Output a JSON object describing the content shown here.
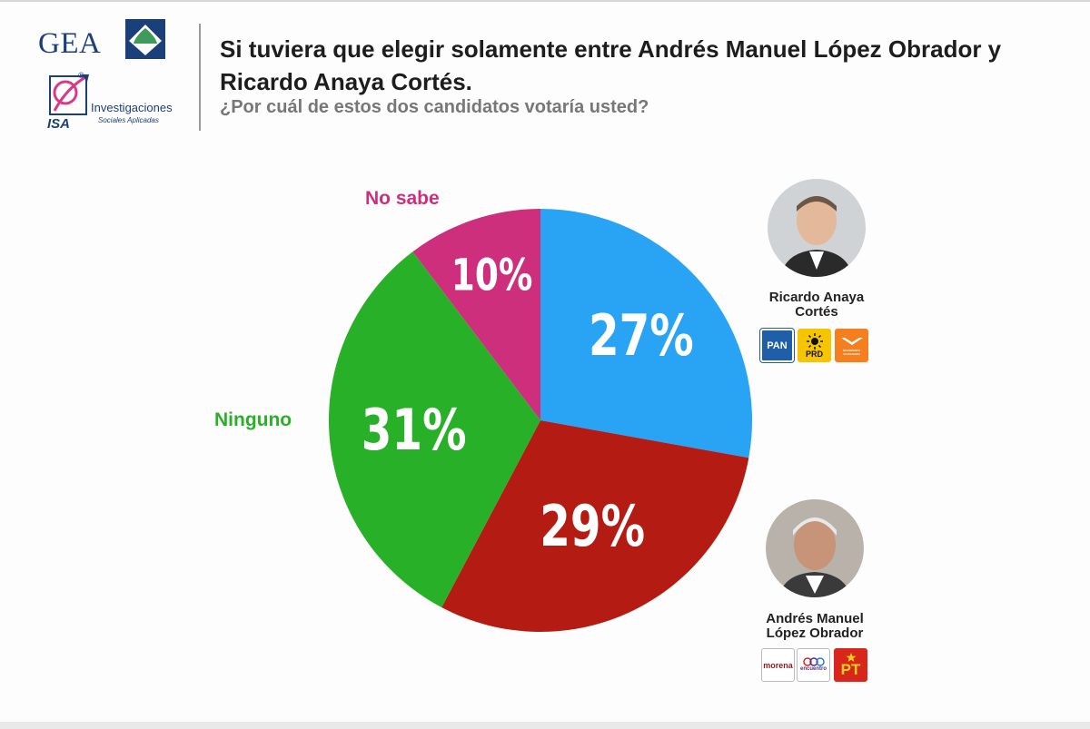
{
  "header": {
    "title": "Si tuviera que elegir solamente entre Andrés Manuel López Obrador y Ricardo Anaya Cortés.",
    "subtitle": "¿Por cuál de estos dos candidatos votaría usted?"
  },
  "logos": {
    "gea": "GEA",
    "isa_line1": "Investigaciones",
    "isa_line2": "Sociales Aplicadas",
    "isa_abbr": "ISA",
    "isa_registered": "®"
  },
  "chart_data": {
    "type": "pie",
    "title": "Si tuviera que elegir solamente entre Andrés Manuel López Obrador y Ricardo Anaya Cortés.",
    "subtitle": "¿Por cuál de estos dos candidatos votaría usted?",
    "start_angle_deg": 0,
    "direction": "clockwise",
    "slices": [
      {
        "label": "Ricardo Anaya Cortés",
        "value": 27,
        "display": "27%",
        "color": "#29a3f4"
      },
      {
        "label": "Andrés Manuel López Obrador",
        "value": 29,
        "display": "29%",
        "color": "#b31b13"
      },
      {
        "label": "Ninguno",
        "value": 31,
        "display": "31%",
        "color": "#29b029"
      },
      {
        "label": "No sabe",
        "value": 10,
        "display": "10%",
        "color": "#cd2f7c"
      }
    ],
    "category_labels": {
      "ninguno": {
        "text": "Ninguno",
        "color": "#29b029"
      },
      "no_sabe": {
        "text": "No sabe",
        "color": "#cd2f7c"
      }
    }
  },
  "candidates": {
    "anaya": {
      "name_line1": "Ricardo Anaya",
      "name_line2": "Cortés",
      "parties": [
        {
          "text": "PAN",
          "bg": "#1f5ea8",
          "fg": "#ffffff",
          "icon": "pan-logo-icon"
        },
        {
          "text": "PRD",
          "bg": "#f7c400",
          "fg": "#111111",
          "icon": "prd-sun-icon"
        },
        {
          "text": "MOVIMIENTO CIUDADANO",
          "bg": "#f57e1f",
          "fg": "#ffffff",
          "icon": "eagle-icon"
        }
      ]
    },
    "amlo": {
      "name_line1": "Andrés Manuel",
      "name_line2": "López Obrador",
      "parties": [
        {
          "text": "morena",
          "bg": "#ffffff",
          "fg": "#8b1c1c",
          "icon": "morena-logo-icon"
        },
        {
          "text": "encuentro",
          "bg": "#ffffff",
          "fg": "#5a2d82",
          "icon": "encuentro-logo-icon"
        },
        {
          "text": "PT",
          "bg": "#d8261c",
          "fg": "#f6d21a",
          "icon": "pt-star-icon"
        }
      ]
    }
  }
}
